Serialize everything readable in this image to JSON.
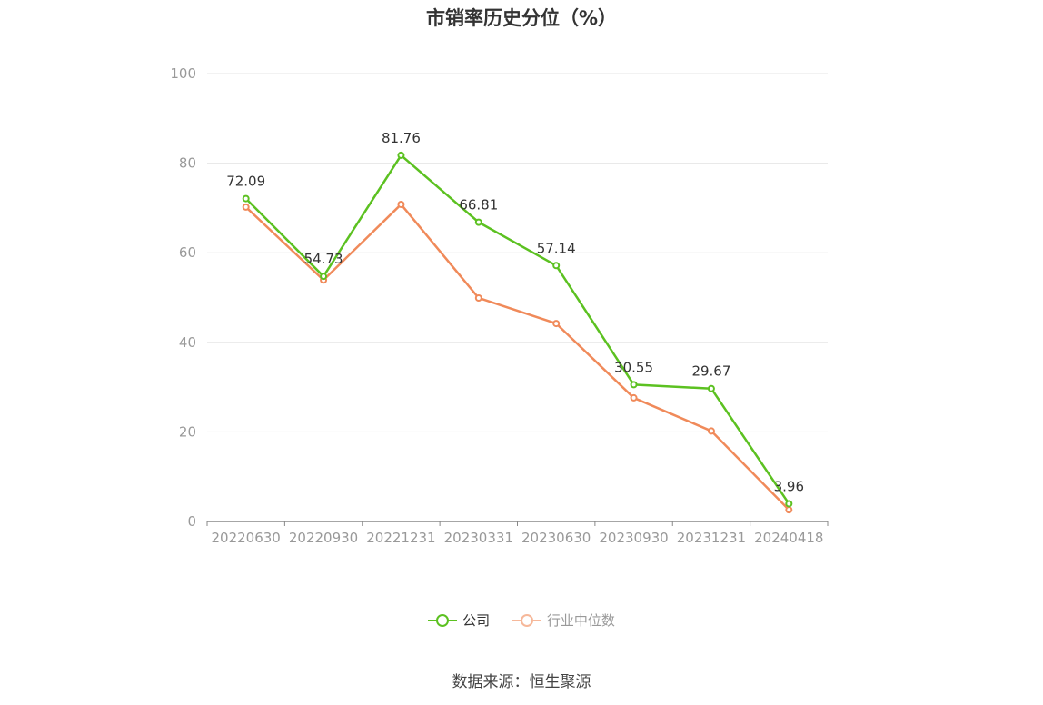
{
  "chart_data": {
    "type": "line",
    "title": "市销率历史分位（%）",
    "categories": [
      "20220630",
      "20220930",
      "20221231",
      "20230331",
      "20230630",
      "20230930",
      "20231231",
      "20240418"
    ],
    "series": [
      {
        "name": "公司",
        "color": "#5cc121",
        "values": [
          72.09,
          54.73,
          81.76,
          66.81,
          57.14,
          30.55,
          29.67,
          3.96
        ],
        "labels": [
          "72.09",
          "54.73",
          "81.76",
          "66.81",
          "57.14",
          "30.55",
          "29.67",
          "3.96"
        ]
      },
      {
        "name": "行业中位数",
        "color": "#f08a5a",
        "legend_color": "#f6b89a",
        "values": [
          70.2,
          53.9,
          70.8,
          49.9,
          44.2,
          27.6,
          20.2,
          2.6
        ]
      }
    ],
    "ylim": [
      0,
      100
    ],
    "yticks": [
      "0",
      "20",
      "40",
      "60",
      "80",
      "100"
    ],
    "grid": true,
    "legend_position": "bottom"
  },
  "source_text": "数据来源：恒生聚源"
}
